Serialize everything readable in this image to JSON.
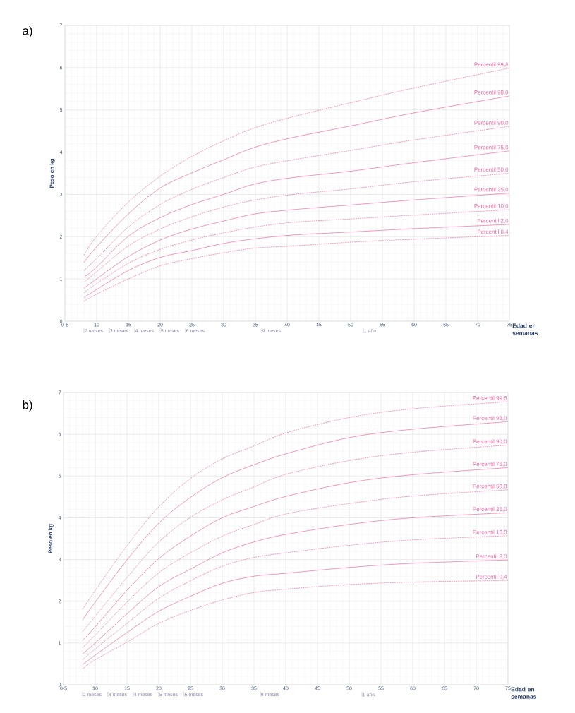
{
  "chart_data": [
    {
      "type": "line",
      "title": "a)",
      "xlabel": "Edad en semanas",
      "ylabel": "Peso en kg",
      "xlim": [
        5,
        75
      ],
      "ylim": [
        0,
        7
      ],
      "xticks": [
        {
          "value": 5,
          "label": "0-5"
        },
        10,
        15,
        20,
        25,
        30,
        35,
        40,
        45,
        50,
        55,
        60,
        65,
        70,
        75
      ],
      "yticks": [
        0,
        1,
        2,
        3,
        4,
        5,
        6,
        7
      ],
      "annotations": [
        "2 meses",
        "3 meses",
        "4 meses",
        "5 meses",
        "6 meses",
        "9 meses",
        "1 año"
      ],
      "grid": true,
      "x": [
        8,
        10,
        15,
        20,
        25,
        30,
        35,
        41,
        50,
        60,
        75
      ],
      "series": [
        {
          "name": "Percentil 99,6",
          "color": "#ec6aa4",
          "line_style": "dashed",
          "values": [
            1.56,
            2.01,
            2.82,
            3.43,
            3.9,
            4.27,
            4.58,
            4.84,
            5.17,
            5.52,
            5.99
          ]
        },
        {
          "name": "Percentil 98,0",
          "color": "#ec6aa4",
          "line_style": "solid",
          "values": [
            1.39,
            1.76,
            2.54,
            3.15,
            3.51,
            3.82,
            4.12,
            4.35,
            4.62,
            4.93,
            5.33
          ]
        },
        {
          "name": "Percentil 90,0",
          "color": "#ec6aa4",
          "line_style": "dashed",
          "values": [
            1.2,
            1.48,
            2.23,
            2.76,
            3.12,
            3.4,
            3.65,
            3.82,
            4.04,
            4.29,
            4.61
          ]
        },
        {
          "name": "Percentil 75,0",
          "color": "#ec6aa4",
          "line_style": "solid",
          "values": [
            1.04,
            1.28,
            2.01,
            2.45,
            2.76,
            3.0,
            3.25,
            3.4,
            3.55,
            3.75,
            4.03
          ]
        },
        {
          "name": "Percentil 50,0",
          "color": "#ec6aa4",
          "line_style": "dashed",
          "values": [
            0.92,
            1.17,
            1.78,
            2.18,
            2.47,
            2.7,
            2.87,
            3.0,
            3.13,
            3.3,
            3.5
          ]
        },
        {
          "name": "Percentil 25,0",
          "color": "#ec6aa4",
          "line_style": "solid",
          "values": [
            0.78,
            1.0,
            1.53,
            1.92,
            2.18,
            2.37,
            2.54,
            2.64,
            2.75,
            2.87,
            3.03
          ]
        },
        {
          "name": "Percentil 10,0",
          "color": "#ec6aa4",
          "line_style": "dashed",
          "values": [
            0.67,
            0.89,
            1.37,
            1.7,
            1.92,
            2.09,
            2.23,
            2.34,
            2.42,
            2.51,
            2.64
          ]
        },
        {
          "name": "Percentil 2,0",
          "color": "#ec6aa4",
          "line_style": "solid",
          "values": [
            0.56,
            0.75,
            1.2,
            1.51,
            1.67,
            1.84,
            1.95,
            2.04,
            2.11,
            2.19,
            2.29
          ]
        },
        {
          "name": "Percentil 0,4",
          "color": "#ec6aa4",
          "line_style": "dashed",
          "values": [
            0.47,
            0.64,
            1.0,
            1.31,
            1.48,
            1.62,
            1.73,
            1.78,
            1.87,
            1.94,
            2.03
          ]
        }
      ]
    },
    {
      "type": "line",
      "title": "b)",
      "xlabel": "Edad en semanas",
      "ylabel": "Peso en kg",
      "xlim": [
        5,
        75
      ],
      "ylim": [
        0,
        7
      ],
      "xticks": [
        {
          "value": 5,
          "label": "0-5"
        },
        10,
        15,
        20,
        25,
        30,
        35,
        40,
        45,
        50,
        55,
        60,
        65,
        70,
        75
      ],
      "yticks": [
        0,
        1,
        2,
        3,
        4,
        5,
        6,
        7
      ],
      "annotations": [
        "2 meses",
        "3 meses",
        "4 meses",
        "5 meses",
        "6 meses",
        "9 meses",
        "1 año"
      ],
      "grid": true,
      "x": [
        8,
        10,
        15,
        20,
        25,
        30,
        35,
        40,
        50,
        60,
        75
      ],
      "series": [
        {
          "name": "Percentil 99,6",
          "color": "#ec6aa4",
          "line_style": "dashed",
          "values": [
            1.81,
            2.26,
            3.33,
            4.26,
            4.94,
            5.41,
            5.72,
            6.03,
            6.4,
            6.61,
            6.78
          ]
        },
        {
          "name": "Percentil 98,0",
          "color": "#ec6aa4",
          "line_style": "solid",
          "values": [
            1.55,
            1.98,
            2.99,
            3.87,
            4.49,
            4.96,
            5.27,
            5.53,
            5.92,
            6.12,
            6.3
          ]
        },
        {
          "name": "Percentil 90,0",
          "color": "#ec6aa4",
          "line_style": "dashed",
          "values": [
            1.27,
            1.64,
            2.57,
            3.42,
            4.01,
            4.43,
            4.74,
            5.04,
            5.37,
            5.57,
            5.74
          ]
        },
        {
          "name": "Percentil 75,0",
          "color": "#ec6aa4",
          "line_style": "solid",
          "values": [
            1.06,
            1.39,
            2.26,
            3.02,
            3.56,
            4.0,
            4.27,
            4.51,
            4.84,
            5.03,
            5.2
          ]
        },
        {
          "name": "Percentil 50,0",
          "color": "#ec6aa4",
          "line_style": "dashed",
          "values": [
            0.89,
            1.19,
            1.98,
            2.68,
            3.16,
            3.56,
            3.84,
            4.09,
            4.34,
            4.52,
            4.67
          ]
        },
        {
          "name": "Percentil 25,0",
          "color": "#ec6aa4",
          "line_style": "solid",
          "values": [
            0.74,
            1.0,
            1.7,
            2.35,
            2.77,
            3.16,
            3.42,
            3.6,
            3.84,
            4.0,
            4.12
          ]
        },
        {
          "name": "Percentil 10,0",
          "color": "#ec6aa4",
          "line_style": "dashed",
          "values": [
            0.6,
            0.86,
            1.47,
            2.07,
            2.49,
            2.84,
            3.05,
            3.16,
            3.34,
            3.47,
            3.57
          ]
        },
        {
          "name": "Percentil 2,0",
          "color": "#ec6aa4",
          "line_style": "solid",
          "values": [
            0.48,
            0.71,
            1.25,
            1.76,
            2.12,
            2.43,
            2.6,
            2.67,
            2.81,
            2.91,
            2.99
          ]
        },
        {
          "name": "Percentil 0,4",
          "color": "#ec6aa4",
          "line_style": "dashed",
          "values": [
            0.38,
            0.6,
            1.02,
            1.47,
            1.78,
            2.03,
            2.21,
            2.29,
            2.4,
            2.46,
            2.5
          ]
        }
      ]
    }
  ]
}
